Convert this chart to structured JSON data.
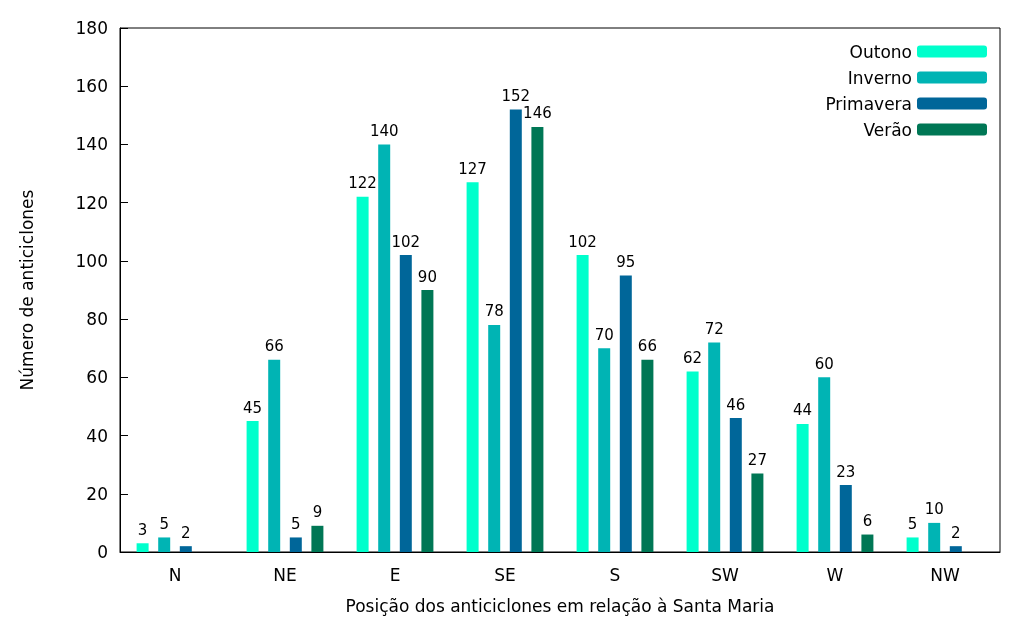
{
  "chart_data": {
    "type": "bar",
    "xlabel": "Posição dos anticiclones em relação à Santa Maria",
    "ylabel": "Número de anticiclones",
    "categories": [
      "N",
      "NE",
      "E",
      "SE",
      "S",
      "SW",
      "W",
      "NW"
    ],
    "series": [
      {
        "name": "Outono",
        "color": "#00ffcc",
        "values": [
          3,
          45,
          122,
          127,
          102,
          62,
          44,
          5
        ]
      },
      {
        "name": "Inverno",
        "color": "#00b4b4",
        "values": [
          5,
          66,
          140,
          78,
          70,
          72,
          60,
          10
        ]
      },
      {
        "name": "Primavera",
        "color": "#006699",
        "values": [
          2,
          5,
          102,
          152,
          95,
          46,
          23,
          2
        ]
      },
      {
        "name": "Verão",
        "color": "#007755",
        "values": [
          null,
          9,
          90,
          146,
          66,
          27,
          6,
          null
        ]
      }
    ],
    "ylim": [
      0,
      180
    ],
    "yticks": [
      0,
      20,
      40,
      60,
      80,
      100,
      120,
      140,
      160,
      180
    ],
    "grid": false,
    "legend": "top right",
    "data_labels": true
  }
}
